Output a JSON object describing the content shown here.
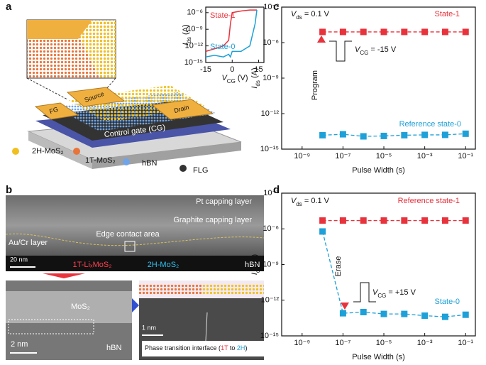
{
  "panel_a": {
    "label": "a",
    "fg": "FG",
    "source": "Source",
    "drain": "Drain",
    "gate": "Control gate (CG)",
    "legend": [
      "2H-MoS₂",
      "1T-MoS₂",
      "hBN",
      "FLG"
    ]
  },
  "panel_b": {
    "label": "b",
    "pt": "Pt capping layer",
    "graphite": "Graphite capping layer",
    "aucr": "Au/Cr layer",
    "edge": "Edge contact area",
    "scale1": "20 nm",
    "phase1": "1T-LiₓMoS₂",
    "phase2": "2H-MoS₂",
    "hbn1": "hBN",
    "mos2": "MoS₂",
    "hbn2": "hBN",
    "scale2": "2 nm",
    "scale3": "1 nm",
    "interface": {
      "text": "Phase transition interface (",
      "a": "1T",
      "mid": " to ",
      "b": "2H",
      "end": ")"
    }
  },
  "panel_c": {
    "label": "c",
    "arrow_label": "Program"
  },
  "panel_d": {
    "label": "d",
    "arrow_label": "Erase"
  },
  "chart_data": [
    {
      "type": "line",
      "xlabel": {
        "text": "V",
        "sub": "CG",
        "after": " (V)"
      },
      "ylabel": {
        "text": "I",
        "sub": "ds",
        "after": " (A)"
      },
      "xlim": [
        -15,
        18
      ],
      "xticks": [
        -15,
        0,
        15
      ],
      "ylog": true,
      "ylim": [
        1e-15,
        1e-05
      ],
      "yticks": [
        {
          "value": 1e-06,
          "label": "10⁻⁶"
        },
        {
          "value": 1e-09,
          "label": "10⁻⁹"
        },
        {
          "value": 1e-12,
          "label": "10⁻¹²"
        },
        {
          "value": 1e-15,
          "label": "10⁻¹⁵"
        }
      ],
      "x": [
        -15,
        -10,
        -5,
        -2,
        -1,
        0,
        5,
        10,
        13,
        14
      ],
      "series": [
        {
          "name": "State-1",
          "color": "#e8323c",
          "values": [
            1e-13,
            3e-13,
            1e-12,
            1e-11,
            1e-08,
            1e-06,
            2e-06,
            3e-06,
            3e-06,
            3e-06
          ]
        },
        {
          "name": "State-0",
          "color": "#1ea0d8",
          "values": [
            1e-14,
            2e-14,
            1e-14,
            3e-14,
            1e-14,
            1e-13,
            1e-13,
            1e-12,
            1e-08,
            3e-06
          ]
        }
      ]
    },
    {
      "type": "line",
      "marker": "square",
      "linestyle": "dashed",
      "xlabel": "Pulse Width (s)",
      "ylabel": {
        "text": "I",
        "sub": "ds",
        "after": " (A)"
      },
      "xlog": true,
      "xlim": [
        1e-10,
        0.3
      ],
      "ylog": true,
      "ylim": [
        1e-15,
        0.001
      ],
      "xticks": [
        {
          "value": 1e-09,
          "label": "10⁻⁹"
        },
        {
          "value": 1e-07,
          "label": "10⁻⁷"
        },
        {
          "value": 1e-05,
          "label": "10⁻⁵"
        },
        {
          "value": 0.001,
          "label": "10⁻³"
        },
        {
          "value": 0.1,
          "label": "10⁻¹"
        }
      ],
      "yticks": [
        {
          "value": 0.001,
          "label": "10⁻³"
        },
        {
          "value": 1e-06,
          "label": "10⁻⁶"
        },
        {
          "value": 1e-09,
          "label": "10⁻⁹"
        },
        {
          "value": 1e-12,
          "label": "10⁻¹²"
        },
        {
          "value": 1e-15,
          "label": "10⁻¹⁵"
        }
      ],
      "x": [
        1e-08,
        1e-07,
        1e-06,
        1e-05,
        0.0001,
        0.001,
        0.01,
        0.1
      ],
      "series": [
        {
          "name": "State-1",
          "color": "#e8323c",
          "values": [
            8e-06,
            8e-06,
            8e-06,
            8e-06,
            8e-06,
            8e-06,
            8e-06,
            8e-06
          ]
        },
        {
          "name": "Reference state-0",
          "color": "#1ea0d8",
          "values": [
            1.5e-14,
            1.8e-14,
            1.2e-14,
            1.3e-14,
            1.5e-14,
            1.6e-14,
            1.6e-14,
            2e-14
          ]
        }
      ],
      "annotations": [
        {
          "text": "V",
          "sub": "ds",
          "after": " = 0.1 V"
        },
        {
          "text": "V",
          "sub": "CG",
          "after": " = -15 V"
        }
      ]
    },
    {
      "type": "line",
      "marker": "square",
      "linestyle": "dashed",
      "xlabel": "Pulse Width (s)",
      "ylabel": {
        "text": "I",
        "sub": "ds",
        "after": " (A)"
      },
      "xlog": true,
      "xlim": [
        1e-10,
        0.3
      ],
      "ylog": true,
      "ylim": [
        1e-15,
        0.001
      ],
      "xticks": [
        {
          "value": 1e-09,
          "label": "10⁻⁹"
        },
        {
          "value": 1e-07,
          "label": "10⁻⁷"
        },
        {
          "value": 1e-05,
          "label": "10⁻⁵"
        },
        {
          "value": 0.001,
          "label": "10⁻³"
        },
        {
          "value": 0.1,
          "label": "10⁻¹"
        }
      ],
      "yticks": [
        {
          "value": 0.001,
          "label": "10⁻³"
        },
        {
          "value": 1e-06,
          "label": "10⁻⁶"
        },
        {
          "value": 1e-09,
          "label": "10⁻⁹"
        },
        {
          "value": 1e-12,
          "label": "10⁻¹²"
        },
        {
          "value": 1e-15,
          "label": "10⁻¹⁵"
        }
      ],
      "x": [
        1e-08,
        1e-07,
        1e-06,
        1e-05,
        0.0001,
        0.001,
        0.01,
        0.1
      ],
      "series": [
        {
          "name": "Reference state-1",
          "color": "#e8323c",
          "values": [
            5e-06,
            5e-06,
            5e-06,
            5e-06,
            5e-06,
            5e-06,
            5e-06,
            5e-06
          ]
        },
        {
          "name": "State-0",
          "color": "#1ea0d8",
          "values": [
            6e-07,
            8e-14,
            1e-13,
            7e-14,
            7e-14,
            5e-14,
            4e-14,
            6e-14
          ]
        }
      ],
      "annotations": [
        {
          "text": "V",
          "sub": "ds",
          "after": " = 0.1 V"
        },
        {
          "text": "V",
          "sub": "CG",
          "after": " = +15 V"
        }
      ]
    }
  ]
}
